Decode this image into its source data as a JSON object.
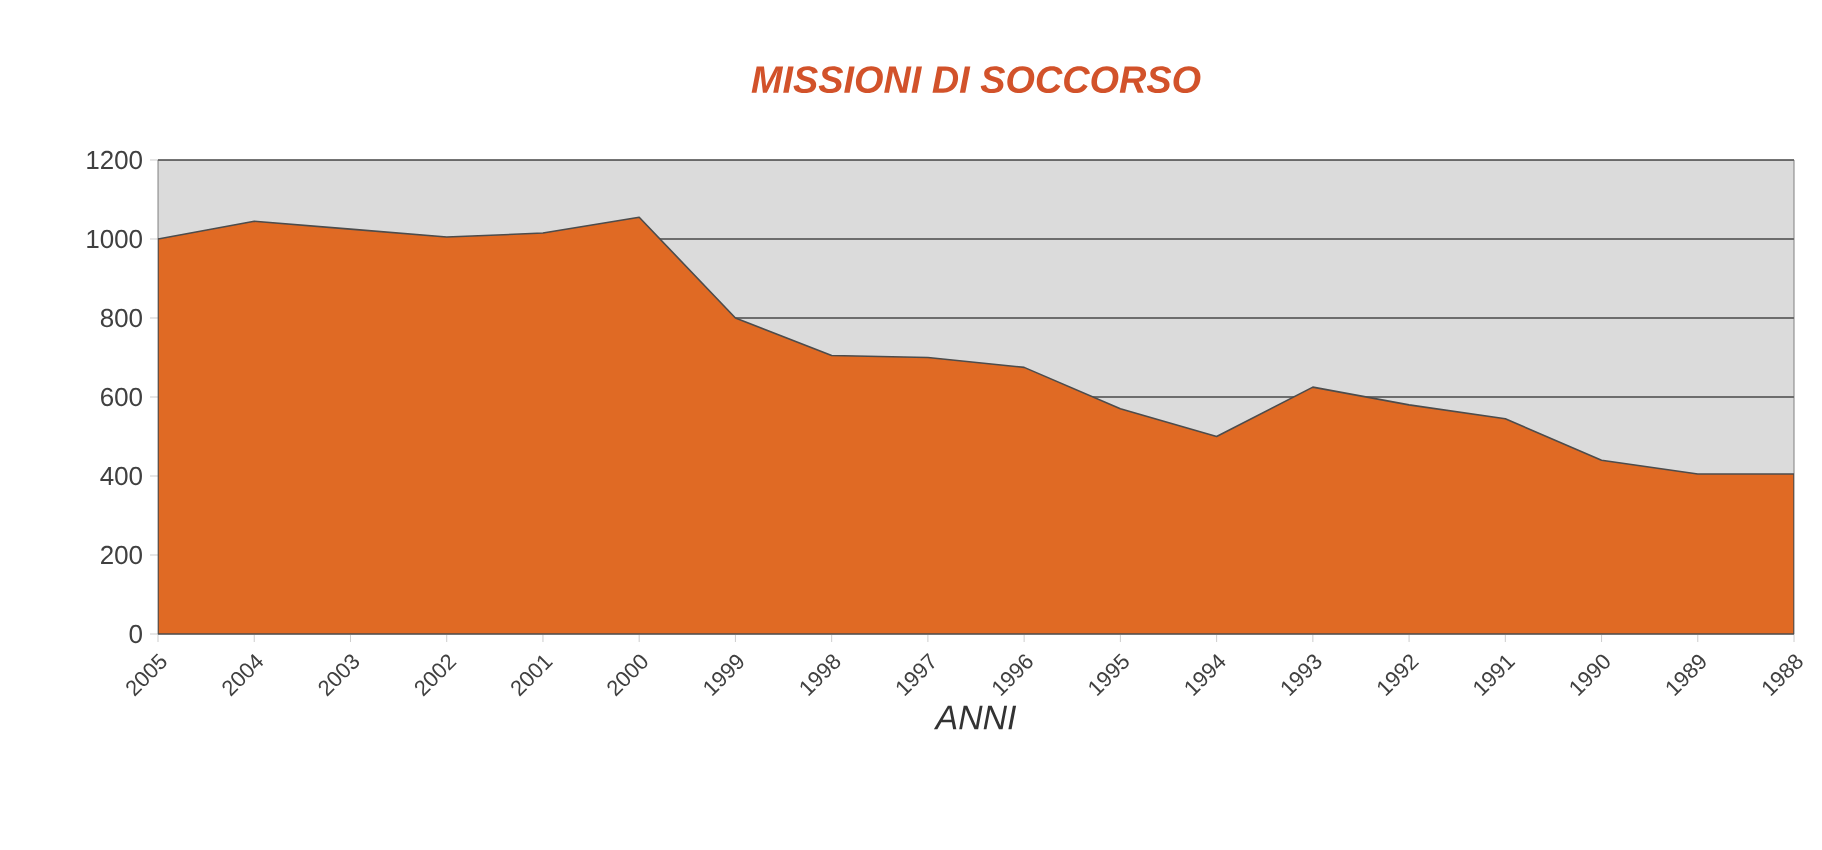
{
  "chart_data": {
    "type": "area",
    "title": "MISSIONI DI SOCCORSO",
    "xlabel": "ANNI",
    "categories": [
      "2005",
      "2004",
      "2003",
      "2002",
      "2001",
      "2000",
      "1999",
      "1998",
      "1997",
      "1996",
      "1995",
      "1994",
      "1993",
      "1992",
      "1991",
      "1990",
      "1989",
      "1988"
    ],
    "values": [
      1000,
      1045,
      1025,
      1005,
      1015,
      1055,
      800,
      705,
      700,
      675,
      570,
      500,
      625,
      580,
      545,
      440,
      405,
      405
    ],
    "color": "#e06a24",
    "ylim": [
      0,
      1200
    ],
    "yticks": [
      0,
      200,
      400,
      600,
      800,
      1000,
      1200
    ],
    "grid": "y"
  }
}
